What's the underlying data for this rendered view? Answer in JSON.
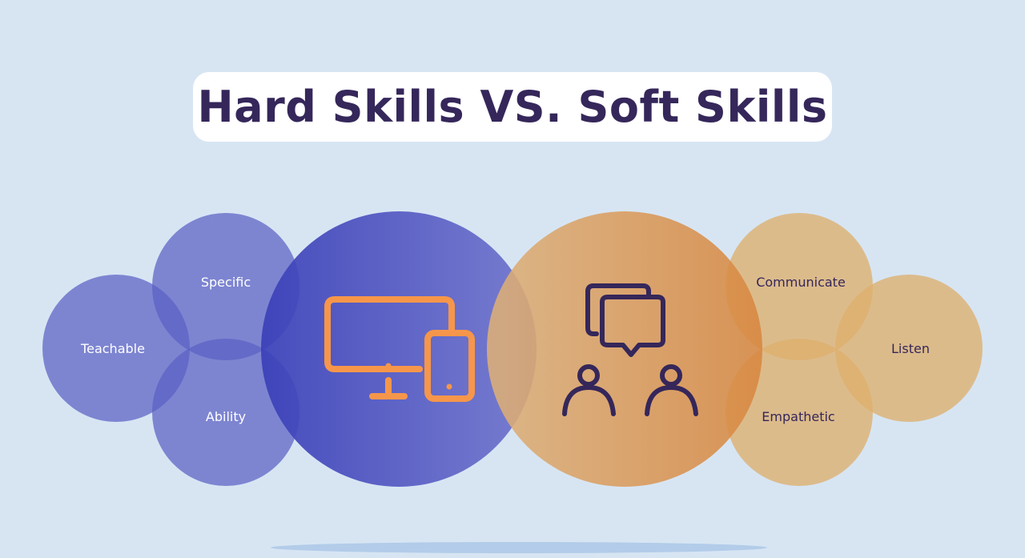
{
  "title": "Hard Skills VS. Soft Skills",
  "hard_skills": {
    "icon": "computer-and-tablet-icon",
    "labels": [
      "Teachable",
      "Specific",
      "Ability"
    ]
  },
  "soft_skills": {
    "icon": "people-conversation-icon",
    "labels": [
      "Communicate",
      "Listen",
      "Empathetic"
    ]
  },
  "colors": {
    "background": "#d7e5f3",
    "hard_circle": "#5a5fc4",
    "soft_circle": "#e0a458",
    "icon_orange": "#f6964a",
    "icon_dark": "#35275a",
    "title_text": "#35275a"
  }
}
